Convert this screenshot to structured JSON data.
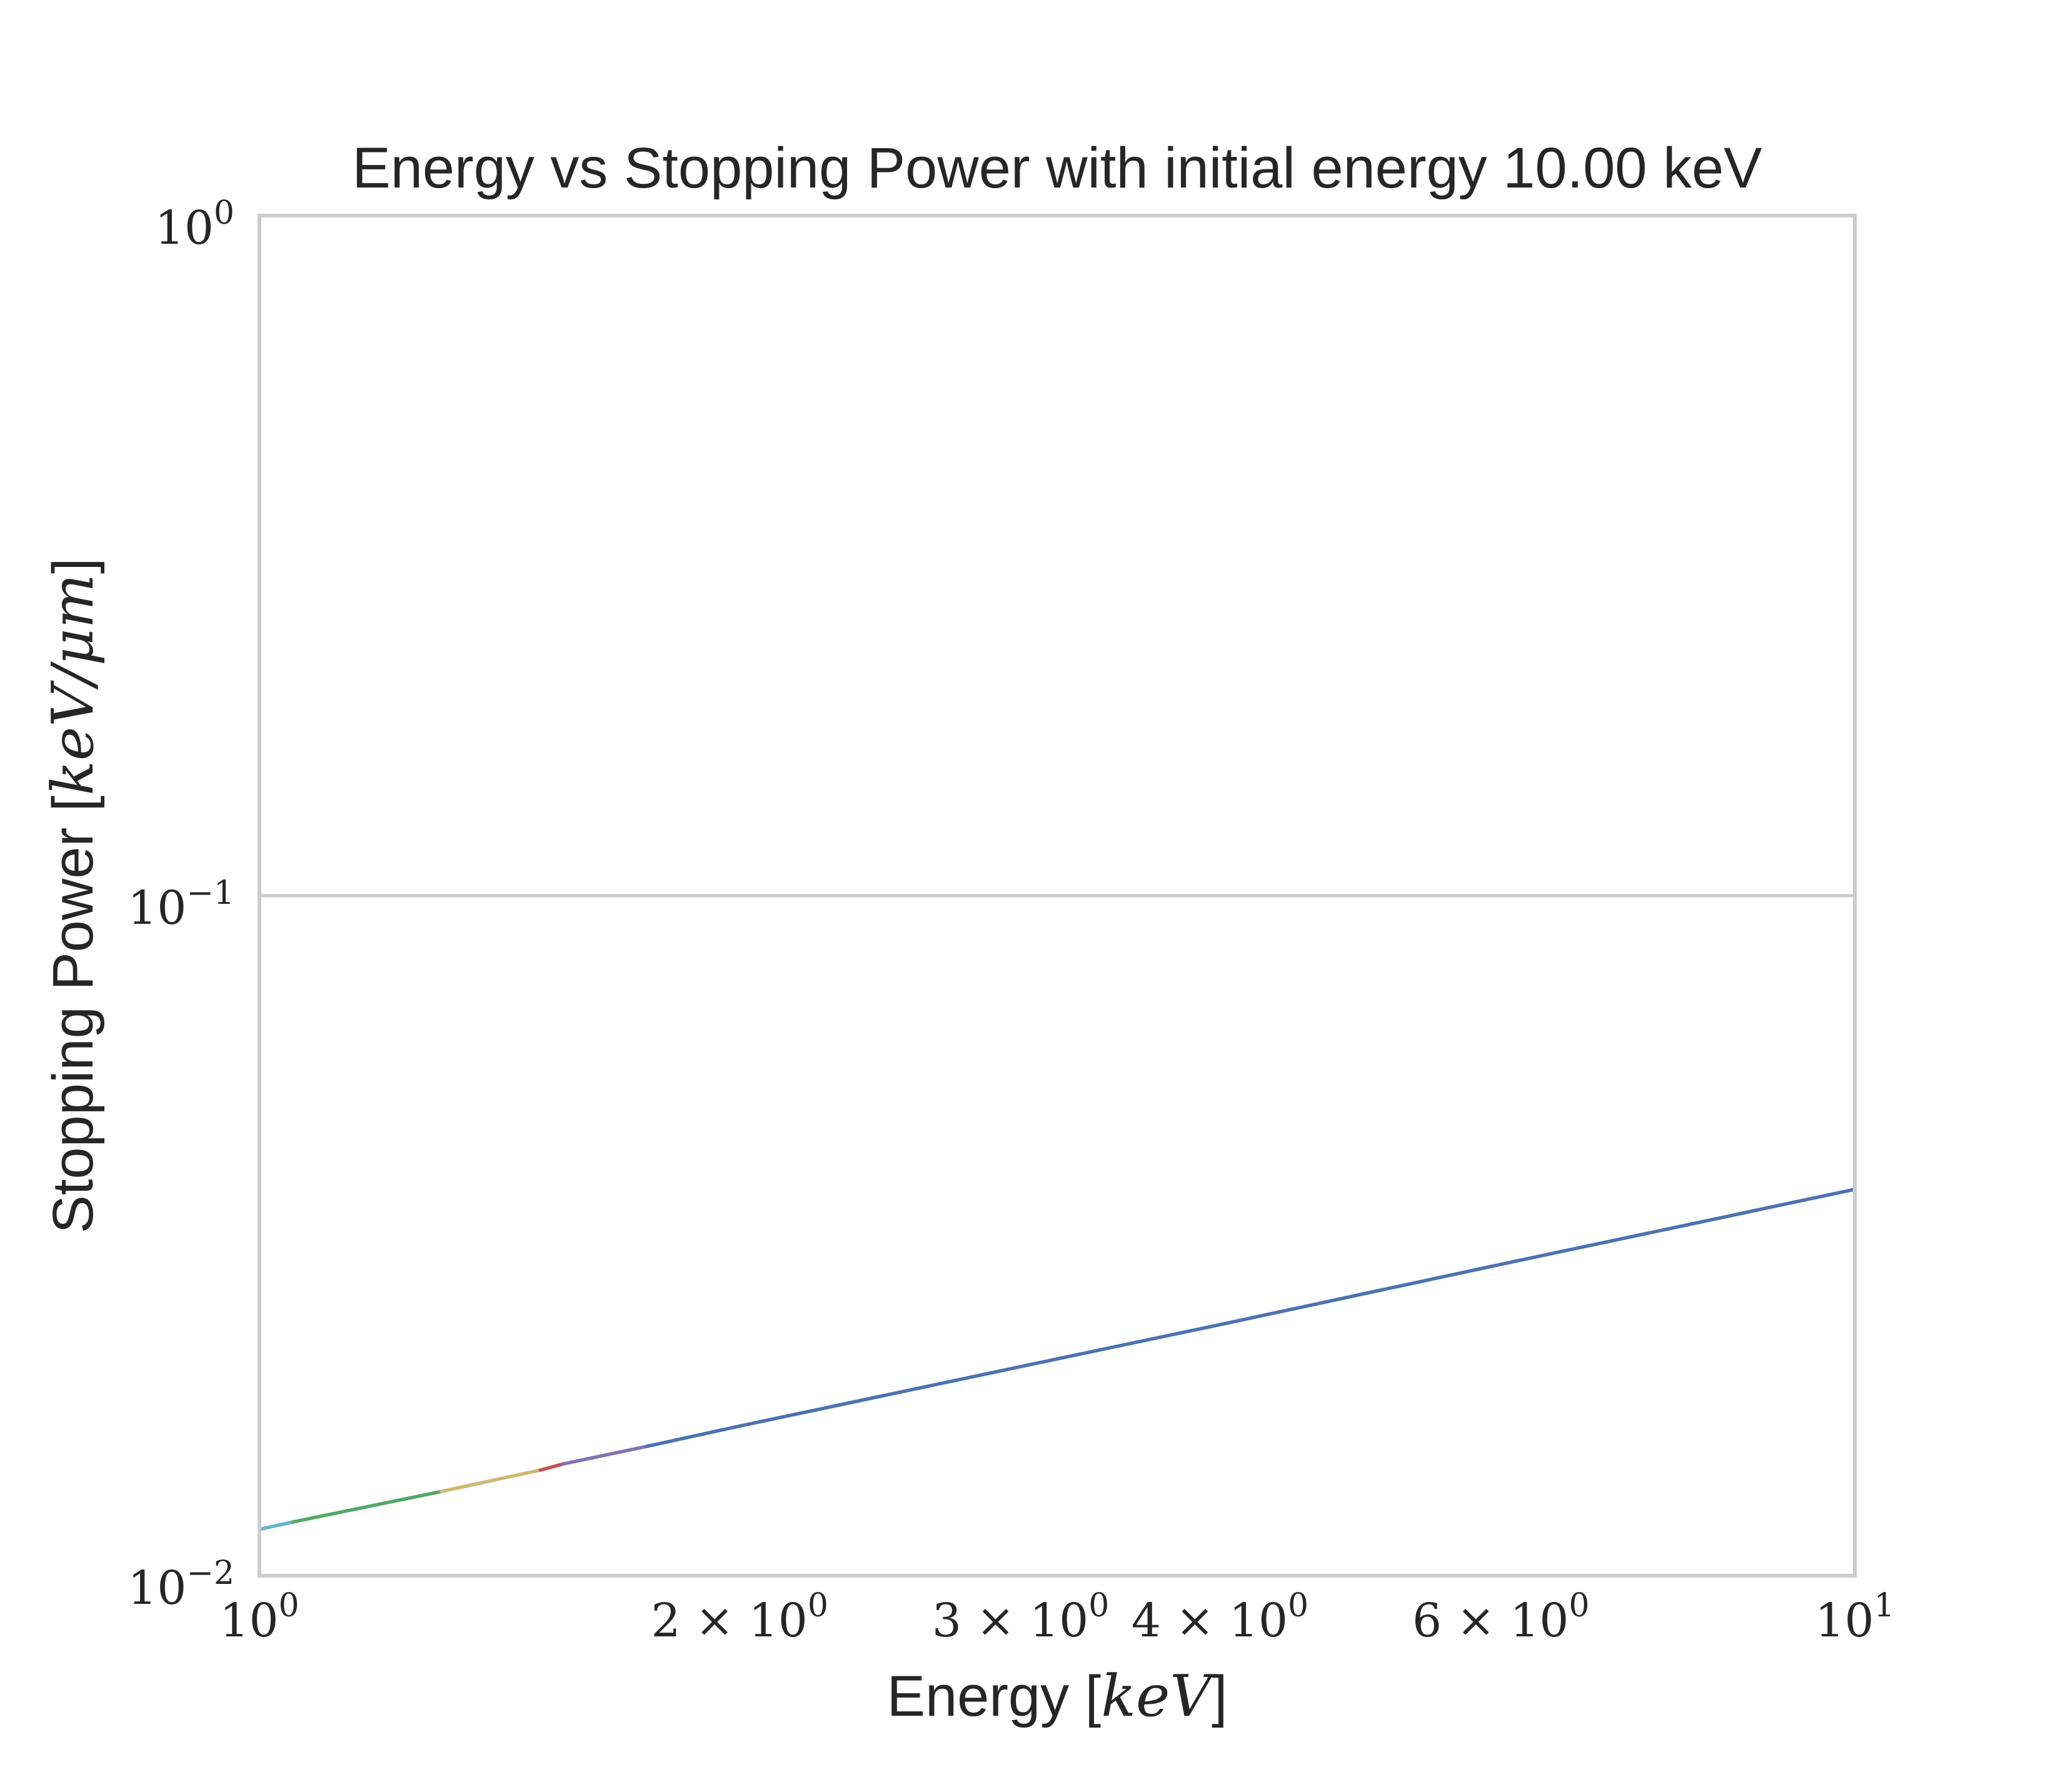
{
  "chart_data": {
    "type": "line",
    "title": "Energy vs Stopping Power with initial energy 10.00 keV",
    "xlabel": {
      "prefix": "Energy [",
      "unit": "keV",
      "suffix": "]"
    },
    "ylabel": {
      "prefix": "Stopping Power [",
      "unit": "keV/μm",
      "suffix": "]"
    },
    "xscale": "log",
    "yscale": "log",
    "xlim": [
      1,
      10
    ],
    "ylim": [
      0.01,
      1
    ],
    "grid": "horizontal",
    "x_ticks": [
      {
        "value": 1,
        "mantissa": "",
        "exponent": "0"
      },
      {
        "value": 2,
        "mantissa": "2 × 10",
        "exponent": "0"
      },
      {
        "value": 3,
        "mantissa": "3 × 10",
        "exponent": "0"
      },
      {
        "value": 4,
        "mantissa": "4 × 10",
        "exponent": "0"
      },
      {
        "value": 6,
        "mantissa": "6 × 10",
        "exponent": "0"
      },
      {
        "value": 10,
        "mantissa": "",
        "exponent": "1"
      }
    ],
    "y_ticks": [
      {
        "value": 0.01,
        "exponent": "−2"
      },
      {
        "value": 0.1,
        "exponent": "−1"
      },
      {
        "value": 1,
        "exponent": "0"
      }
    ],
    "series": [
      {
        "color": "#64b5cd",
        "x": [
          1.0,
          1.05
        ],
        "y": [
          0.0117,
          0.012
        ]
      },
      {
        "color": "#55a868",
        "x": [
          1.05,
          1.3
        ],
        "y": [
          0.012,
          0.0133
        ]
      },
      {
        "color": "#ccb974",
        "x": [
          1.3,
          1.5
        ],
        "y": [
          0.0133,
          0.0143
        ]
      },
      {
        "color": "#c44e52",
        "x": [
          1.5,
          1.55
        ],
        "y": [
          0.0143,
          0.0146
        ]
      },
      {
        "color": "#8172b2",
        "x": [
          1.55,
          1.75
        ],
        "y": [
          0.0146,
          0.0155
        ]
      },
      {
        "color": "#4c72b0",
        "x": [
          1.75,
          2,
          3,
          4,
          6,
          10
        ],
        "y": [
          0.0155,
          0.0166,
          0.0203,
          0.0234,
          0.0287,
          0.037
        ]
      }
    ]
  }
}
